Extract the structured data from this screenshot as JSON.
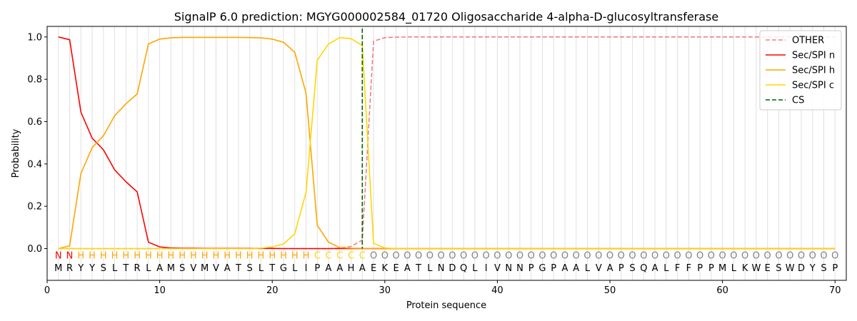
{
  "chart_data": {
    "type": "line",
    "title": "SignalP 6.0 prediction: MGYG000002584_01720 Oligosaccharide 4-alpha-D-glucosyltransferase",
    "xlabel": "Protein sequence",
    "ylabel": "Probability",
    "xlim": [
      0,
      71
    ],
    "ylim": [
      -0.15,
      1.05
    ],
    "x_ticks": [
      0,
      10,
      20,
      30,
      40,
      50,
      60,
      70
    ],
    "y_ticks": [
      0.0,
      0.2,
      0.4,
      0.6,
      0.8,
      1.0
    ],
    "x_tick_labels": [
      "0",
      "10",
      "20",
      "30",
      "40",
      "50",
      "60",
      "70"
    ],
    "y_tick_labels": [
      "0.0",
      "0.2",
      "0.4",
      "0.6",
      "0.8",
      "1.0"
    ],
    "grid": "vertical lines at each residue",
    "legend_position": "top-right",
    "sequence": [
      "M",
      "R",
      "Y",
      "Y",
      "S",
      "L",
      "T",
      "R",
      "L",
      "A",
      "M",
      "S",
      "V",
      "M",
      "V",
      "A",
      "T",
      "S",
      "L",
      "T",
      "G",
      "L",
      "I",
      "P",
      "A",
      "A",
      "H",
      "A",
      "E",
      "K",
      "E",
      "A",
      "T",
      "L",
      "N",
      "D",
      "Q",
      "L",
      "I",
      "V",
      "N",
      "N",
      "P",
      "G",
      "P",
      "A",
      "A",
      "L",
      "V",
      "A",
      "P",
      "S",
      "Q",
      "A",
      "L",
      "F",
      "F",
      "P",
      "P",
      "M",
      "L",
      "K",
      "W",
      "E",
      "S",
      "W",
      "D",
      "Y",
      "S",
      "P"
    ],
    "labels": [
      "N",
      "N",
      "H",
      "H",
      "H",
      "H",
      "H",
      "H",
      "H",
      "H",
      "H",
      "H",
      "H",
      "H",
      "H",
      "H",
      "H",
      "H",
      "H",
      "H",
      "H",
      "H",
      "H",
      "C",
      "C",
      "C",
      "C",
      "C",
      "O",
      "O",
      "O",
      "O",
      "O",
      "O",
      "O",
      "O",
      "O",
      "O",
      "O",
      "O",
      "O",
      "O",
      "O",
      "O",
      "O",
      "O",
      "O",
      "O",
      "O",
      "O",
      "O",
      "O",
      "O",
      "O",
      "O",
      "O",
      "O",
      "O",
      "O",
      "O",
      "O",
      "O",
      "O",
      "O",
      "O",
      "O",
      "O",
      "O",
      "O",
      "O"
    ],
    "label_colors": {
      "N": "#ff0000",
      "H": "#ffa500",
      "C": "#ffd700",
      "O": "#808080"
    },
    "series": [
      {
        "name": "OTHER",
        "color": "#f08080",
        "style": "dashed",
        "x": [
          1,
          2,
          3,
          4,
          5,
          6,
          7,
          8,
          9,
          10,
          11,
          12,
          13,
          14,
          15,
          16,
          17,
          18,
          19,
          20,
          21,
          22,
          23,
          24,
          25,
          26,
          27,
          28,
          29,
          30,
          31,
          32,
          33,
          34,
          35,
          36,
          37,
          38,
          39,
          40,
          41,
          42,
          43,
          44,
          45,
          46,
          47,
          48,
          49,
          50,
          51,
          52,
          53,
          54,
          55,
          56,
          57,
          58,
          59,
          60,
          61,
          62,
          63,
          64,
          65,
          66,
          67,
          68,
          69,
          70
        ],
        "values": [
          0,
          0,
          0,
          0,
          0,
          0,
          0,
          0,
          0,
          0,
          0,
          0,
          0,
          0,
          0,
          0,
          0,
          0,
          0,
          0,
          0,
          0,
          0,
          0,
          0,
          0.003,
          0.01,
          0.04,
          0.98,
          0.997,
          0.999,
          1,
          1,
          1,
          1,
          1,
          1,
          1,
          1,
          1,
          1,
          1,
          1,
          1,
          1,
          1,
          1,
          1,
          1,
          1,
          1,
          1,
          1,
          1,
          1,
          1,
          1,
          1,
          1,
          1,
          1,
          1,
          1,
          1,
          1,
          1,
          1,
          1,
          1,
          1
        ]
      },
      {
        "name": "Sec/SPI n",
        "color": "#ff0000",
        "style": "solid",
        "x": [
          1,
          2,
          3,
          4,
          5,
          6,
          7,
          8,
          9,
          10,
          11,
          12,
          13,
          14,
          15,
          16,
          17,
          18,
          19,
          20,
          21,
          22,
          23,
          24,
          25,
          26,
          27,
          28,
          29,
          30,
          31,
          32,
          33,
          34,
          35,
          36,
          37,
          38,
          39,
          40,
          41,
          42,
          43,
          44,
          45,
          46,
          47,
          48,
          49,
          50,
          51,
          52,
          53,
          54,
          55,
          56,
          57,
          58,
          59,
          60,
          61,
          62,
          63,
          64,
          65,
          66,
          67,
          68,
          69,
          70
        ],
        "values": [
          1.0,
          0.987,
          0.645,
          0.522,
          0.467,
          0.372,
          0.316,
          0.268,
          0.03,
          0.008,
          0.003,
          0.002,
          0.002,
          0.001,
          0.001,
          0.001,
          0.001,
          0.001,
          0.001,
          0.001,
          0,
          0,
          0,
          0,
          0,
          0,
          0,
          0,
          0,
          0,
          0,
          0,
          0,
          0,
          0,
          0,
          0,
          0,
          0,
          0,
          0,
          0,
          0,
          0,
          0,
          0,
          0,
          0,
          0,
          0,
          0,
          0,
          0,
          0,
          0,
          0,
          0,
          0,
          0,
          0,
          0,
          0,
          0,
          0,
          0,
          0,
          0,
          0,
          0,
          0
        ]
      },
      {
        "name": "Sec/SPI h",
        "color": "#ffa500",
        "style": "solid",
        "x": [
          1,
          2,
          3,
          4,
          5,
          6,
          7,
          8,
          9,
          10,
          11,
          12,
          13,
          14,
          15,
          16,
          17,
          18,
          19,
          20,
          21,
          22,
          23,
          24,
          25,
          26,
          27,
          28,
          29,
          30,
          31,
          32,
          33,
          34,
          35,
          36,
          37,
          38,
          39,
          40,
          41,
          42,
          43,
          44,
          45,
          46,
          47,
          48,
          49,
          50,
          51,
          52,
          53,
          54,
          55,
          56,
          57,
          58,
          59,
          60,
          61,
          62,
          63,
          64,
          65,
          66,
          67,
          68,
          69,
          70
        ],
        "values": [
          0.0,
          0.013,
          0.355,
          0.477,
          0.533,
          0.628,
          0.684,
          0.731,
          0.967,
          0.99,
          0.996,
          0.998,
          0.998,
          0.998,
          0.998,
          0.998,
          0.998,
          0.997,
          0.996,
          0.99,
          0.975,
          0.928,
          0.735,
          0.11,
          0.03,
          0.005,
          0.002,
          0.001,
          0,
          0,
          0,
          0,
          0,
          0,
          0,
          0,
          0,
          0,
          0,
          0,
          0,
          0,
          0,
          0,
          0,
          0,
          0,
          0,
          0,
          0,
          0,
          0,
          0,
          0,
          0,
          0,
          0,
          0,
          0,
          0,
          0,
          0,
          0,
          0,
          0,
          0,
          0,
          0,
          0,
          0
        ]
      },
      {
        "name": "Sec/SPI c",
        "color": "#ffd700",
        "style": "solid",
        "x": [
          1,
          2,
          3,
          4,
          5,
          6,
          7,
          8,
          9,
          10,
          11,
          12,
          13,
          14,
          15,
          16,
          17,
          18,
          19,
          20,
          21,
          22,
          23,
          24,
          25,
          26,
          27,
          28,
          29,
          30,
          31,
          32,
          33,
          34,
          35,
          36,
          37,
          38,
          39,
          40,
          41,
          42,
          43,
          44,
          45,
          46,
          47,
          48,
          49,
          50,
          51,
          52,
          53,
          54,
          55,
          56,
          57,
          58,
          59,
          60,
          61,
          62,
          63,
          64,
          65,
          66,
          67,
          68,
          69,
          70
        ],
        "values": [
          0,
          0,
          0,
          0,
          0,
          0,
          0,
          0,
          0,
          0,
          0,
          0,
          0,
          0,
          0,
          0,
          0,
          0,
          0.002,
          0.008,
          0.022,
          0.07,
          0.265,
          0.89,
          0.967,
          0.997,
          0.992,
          0.96,
          0.025,
          0.003,
          0,
          0,
          0,
          0,
          0,
          0,
          0,
          0,
          0,
          0,
          0,
          0,
          0,
          0,
          0,
          0,
          0,
          0,
          0,
          0,
          0,
          0,
          0,
          0,
          0,
          0,
          0,
          0,
          0,
          0,
          0,
          0,
          0,
          0,
          0,
          0,
          0,
          0,
          0,
          0
        ]
      }
    ],
    "cs": {
      "name": "CS",
      "x": 28,
      "color": "#006400",
      "style": "dashed"
    }
  }
}
